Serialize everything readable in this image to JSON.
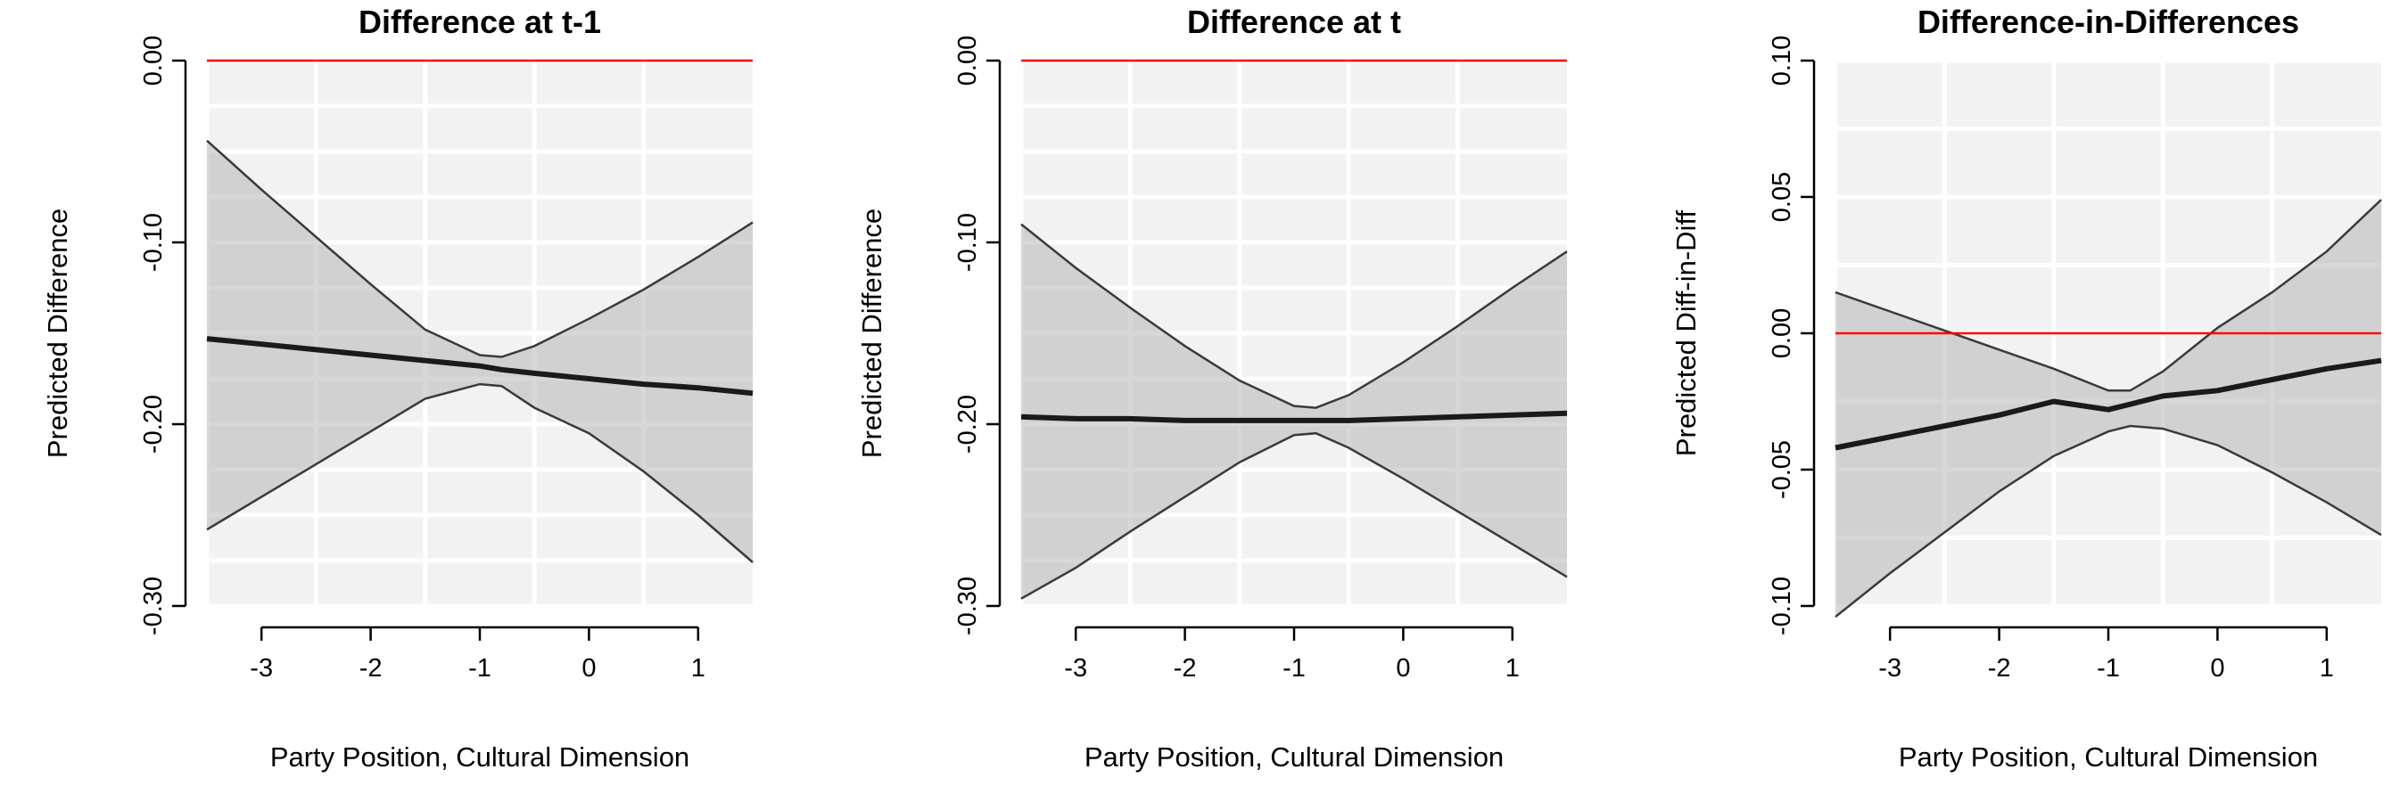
{
  "chart_data": [
    {
      "type": "line",
      "title": "Difference at t-1",
      "xlabel": "Party Position, Cultural Dimension",
      "ylabel": "Predicted Difference",
      "xlim": [
        -3.5,
        1.5
      ],
      "ylim": [
        -0.3,
        0.0
      ],
      "xticks": [
        -3,
        -2,
        -1,
        0,
        1
      ],
      "xtick_labels": [
        "-3",
        "-2",
        "-1",
        "0",
        "1"
      ],
      "yticks": [
        -0.3,
        -0.2,
        -0.1,
        0.0
      ],
      "ytick_labels": [
        "-0.30",
        "-0.20",
        "-0.10",
        "0.00"
      ],
      "grid_x": [
        -3.5,
        -2.5,
        -1.5,
        -0.5,
        0.5
      ],
      "grid_y": [
        -0.3,
        -0.275,
        -0.25,
        -0.225,
        -0.2,
        -0.175,
        -0.15,
        -0.125,
        -0.1,
        -0.075,
        -0.05,
        -0.025,
        0.0
      ],
      "reference_line": 0.0,
      "x": [
        -3.5,
        -3.0,
        -2.5,
        -2.0,
        -1.5,
        -1.0,
        -0.8,
        -0.5,
        0.0,
        0.5,
        1.0,
        1.5
      ],
      "estimate": [
        -0.153,
        -0.156,
        -0.159,
        -0.162,
        -0.165,
        -0.168,
        -0.17,
        -0.172,
        -0.175,
        -0.178,
        -0.18,
        -0.183
      ],
      "lower": [
        -0.258,
        -0.24,
        -0.222,
        -0.204,
        -0.186,
        -0.178,
        -0.179,
        -0.191,
        -0.205,
        -0.226,
        -0.25,
        -0.276
      ],
      "upper": [
        -0.044,
        -0.071,
        -0.097,
        -0.123,
        -0.148,
        -0.162,
        -0.163,
        -0.157,
        -0.142,
        -0.126,
        -0.108,
        -0.089
      ]
    },
    {
      "type": "line",
      "title": "Difference at t",
      "xlabel": "Party Position, Cultural Dimension",
      "ylabel": "Predicted Difference",
      "xlim": [
        -3.5,
        1.5
      ],
      "ylim": [
        -0.3,
        0.0
      ],
      "xticks": [
        -3,
        -2,
        -1,
        0,
        1
      ],
      "xtick_labels": [
        "-3",
        "-2",
        "-1",
        "0",
        "1"
      ],
      "yticks": [
        -0.3,
        -0.2,
        -0.1,
        0.0
      ],
      "ytick_labels": [
        "-0.30",
        "-0.20",
        "-0.10",
        "0.00"
      ],
      "grid_x": [
        -3.5,
        -2.5,
        -1.5,
        -0.5,
        0.5
      ],
      "grid_y": [
        -0.3,
        -0.275,
        -0.25,
        -0.225,
        -0.2,
        -0.175,
        -0.15,
        -0.125,
        -0.1,
        -0.075,
        -0.05,
        -0.025,
        0.0
      ],
      "reference_line": 0.0,
      "x": [
        -3.5,
        -3.0,
        -2.5,
        -2.0,
        -1.5,
        -1.0,
        -0.8,
        -0.5,
        0.0,
        0.5,
        1.0,
        1.5
      ],
      "estimate": [
        -0.196,
        -0.197,
        -0.197,
        -0.198,
        -0.198,
        -0.198,
        -0.198,
        -0.198,
        -0.197,
        -0.196,
        -0.195,
        -0.194
      ],
      "lower": [
        -0.296,
        -0.279,
        -0.259,
        -0.24,
        -0.221,
        -0.206,
        -0.205,
        -0.213,
        -0.23,
        -0.248,
        -0.266,
        -0.284
      ],
      "upper": [
        -0.09,
        -0.114,
        -0.136,
        -0.157,
        -0.176,
        -0.19,
        -0.191,
        -0.184,
        -0.166,
        -0.146,
        -0.125,
        -0.105
      ]
    },
    {
      "type": "line",
      "title": "Difference-in-Differences",
      "xlabel": "Party Position, Cultural Dimension",
      "ylabel": "Predicted Diff-in-Diff",
      "xlim": [
        -3.5,
        1.5
      ],
      "ylim": [
        -0.1,
        0.1
      ],
      "xticks": [
        -3,
        -2,
        -1,
        0,
        1
      ],
      "xtick_labels": [
        "-3",
        "-2",
        "-1",
        "0",
        "1"
      ],
      "yticks": [
        -0.1,
        -0.05,
        0.0,
        0.05,
        0.1
      ],
      "ytick_labels": [
        "-0.10",
        "-0.05",
        "0.00",
        "0.05",
        "0.10"
      ],
      "grid_x": [
        -3.5,
        -2.5,
        -1.5,
        -0.5,
        0.5
      ],
      "grid_y": [
        -0.1,
        -0.075,
        -0.05,
        -0.025,
        0.0,
        0.025,
        0.05,
        0.075,
        0.1
      ],
      "reference_line": 0.0,
      "x": [
        -3.5,
        -3.0,
        -2.5,
        -2.0,
        -1.5,
        -1.0,
        -0.8,
        -0.5,
        0.0,
        0.5,
        1.0,
        1.5
      ],
      "estimate": [
        -0.042,
        -0.038,
        -0.034,
        -0.03,
        -0.025,
        -0.028,
        -0.026,
        -0.023,
        -0.021,
        -0.017,
        -0.013,
        -0.01
      ],
      "lower": [
        -0.104,
        -0.088,
        -0.073,
        -0.058,
        -0.045,
        -0.036,
        -0.034,
        -0.035,
        -0.041,
        -0.051,
        -0.062,
        -0.074
      ],
      "upper": [
        0.015,
        0.008,
        0.001,
        -0.006,
        -0.013,
        -0.021,
        -0.021,
        -0.014,
        0.002,
        0.015,
        0.03,
        0.049
      ]
    }
  ]
}
